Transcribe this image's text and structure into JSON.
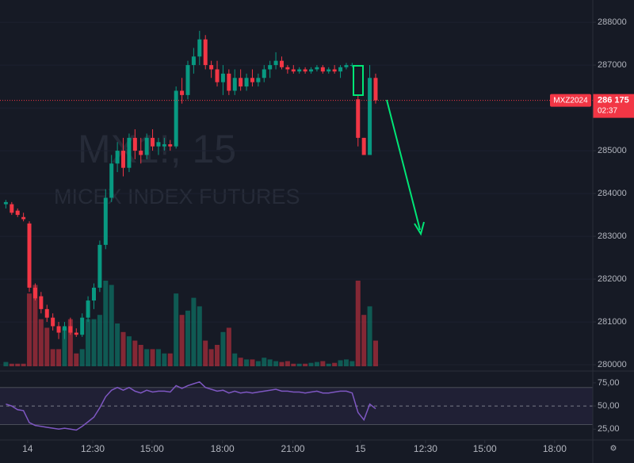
{
  "chart_data": [
    {
      "type": "candlestick",
      "watermark_title": "MX1!, 15",
      "watermark_subtitle": "MICEX INDEX FUTURES",
      "symbol": "MXZ2024",
      "last_price": {
        "value": 286175,
        "label": "286 175"
      },
      "countdown": "02:37",
      "up_color": "#089981",
      "down_color": "#f23645",
      "open": [
        283750,
        283750,
        283600,
        283450,
        283300,
        281800,
        281600,
        281300,
        281100,
        280900,
        280800,
        280900,
        280750,
        280700,
        281100,
        281500,
        281800,
        282800,
        283900,
        284700,
        285000,
        284600,
        285300,
        285000,
        284900,
        285300,
        285100,
        285100,
        285150,
        285100,
        286400,
        286300,
        287000,
        287200,
        287600,
        287000,
        286900,
        286600,
        286800,
        286400,
        286700,
        286500,
        286700,
        286600,
        286700,
        286900,
        287000,
        287100,
        286950,
        286900,
        286850,
        286900,
        286850,
        286900,
        286950,
        286850,
        286900,
        286850,
        286950,
        287000,
        286200,
        285300,
        284900,
        286700
      ],
      "high": [
        283850,
        283800,
        283650,
        283550,
        283350,
        281900,
        281700,
        281400,
        281200,
        281000,
        281000,
        281100,
        280850,
        281200,
        281600,
        281900,
        282900,
        284100,
        284900,
        285200,
        285300,
        285400,
        285500,
        285300,
        285400,
        285500,
        285300,
        285300,
        285250,
        286500,
        286700,
        287100,
        287400,
        287800,
        287700,
        287100,
        287100,
        287000,
        286900,
        286900,
        286900,
        286800,
        286900,
        286800,
        287000,
        287100,
        287300,
        287200,
        287000,
        287000,
        286950,
        286950,
        286950,
        287000,
        287000,
        286950,
        287000,
        287000,
        287050,
        287050,
        286300,
        285300,
        287000,
        286800
      ],
      "low": [
        283650,
        283500,
        283450,
        283350,
        281700,
        281500,
        281200,
        281000,
        280800,
        280600,
        280600,
        280700,
        280650,
        280650,
        281000,
        281300,
        281700,
        282700,
        283800,
        284500,
        284400,
        284500,
        284800,
        284700,
        284800,
        285000,
        284900,
        285000,
        285000,
        285050,
        286100,
        286200,
        286800,
        287000,
        286900,
        286700,
        286500,
        286300,
        286300,
        286300,
        286400,
        286400,
        286500,
        286500,
        286600,
        286700,
        286900,
        286900,
        286800,
        286800,
        286800,
        286800,
        286800,
        286850,
        286800,
        286800,
        286800,
        286700,
        286900,
        286950,
        285100,
        284900,
        284900,
        286100
      ],
      "close": [
        283800,
        283550,
        283500,
        283400,
        281800,
        281550,
        281300,
        281100,
        280900,
        280750,
        280900,
        280750,
        280700,
        281100,
        281500,
        281800,
        282800,
        283900,
        284700,
        285000,
        284600,
        285300,
        285000,
        284900,
        285300,
        285100,
        285200,
        285150,
        285100,
        286400,
        286300,
        287000,
        287200,
        287600,
        287000,
        286900,
        286600,
        286800,
        286400,
        286700,
        286500,
        286700,
        286600,
        286700,
        286900,
        287000,
        287100,
        286950,
        286900,
        286850,
        286900,
        286850,
        286900,
        286950,
        286850,
        286900,
        286850,
        286950,
        287000,
        287000,
        285300,
        284900,
        286700,
        286175
      ],
      "volume": [
        5,
        3,
        3,
        3,
        85,
        95,
        55,
        45,
        20,
        20,
        45,
        55,
        15,
        20,
        55,
        55,
        60,
        100,
        95,
        50,
        40,
        35,
        30,
        25,
        20,
        20,
        20,
        15,
        15,
        85,
        60,
        65,
        80,
        70,
        30,
        20,
        25,
        40,
        45,
        15,
        10,
        8,
        8,
        6,
        10,
        8,
        6,
        5,
        6,
        3,
        3,
        3,
        4,
        5,
        6,
        3,
        4,
        7,
        8,
        6,
        100,
        60,
        70,
        30
      ],
      "xlim": [
        -1,
        100
      ],
      "xticks": [
        {
          "value": 3.7,
          "label": "14"
        },
        {
          "value": 14.8,
          "label": "12:30"
        },
        {
          "value": 24.9,
          "label": "15:00"
        },
        {
          "value": 36.9,
          "label": "18:00"
        },
        {
          "value": 48.9,
          "label": "21:00"
        },
        {
          "value": 60.4,
          "label": "15"
        },
        {
          "value": 71.5,
          "label": "12:30"
        },
        {
          "value": 81.6,
          "label": "15:00"
        },
        {
          "value": 93.5,
          "label": "18:00"
        }
      ],
      "ylim": [
        279890,
        288520
      ],
      "yticks": [
        280000,
        281000,
        282000,
        283000,
        284000,
        285000,
        286000,
        287000,
        288000
      ]
    },
    {
      "type": "line",
      "color": "#7e57c2",
      "values": [
        52,
        50,
        46,
        45,
        32,
        29,
        28,
        27,
        26,
        25,
        26,
        25,
        24,
        28,
        33,
        38,
        48,
        60,
        67,
        70,
        67,
        70,
        66,
        64,
        67,
        65,
        66,
        66,
        65,
        72,
        69,
        72,
        74,
        76,
        70,
        68,
        66,
        67,
        64,
        66,
        64,
        65,
        64,
        65,
        66,
        67,
        68,
        66,
        66,
        65,
        65,
        64,
        65,
        66,
        64,
        64,
        65,
        66,
        66,
        64,
        43,
        35,
        52,
        47
      ],
      "ylim": [
        15,
        86
      ],
      "yticks": [
        {
          "value": 25,
          "label": "25,00"
        },
        {
          "value": 50,
          "label": "50,00"
        },
        {
          "value": 75,
          "label": "75,00"
        }
      ],
      "band": [
        30,
        70
      ],
      "midline": 50
    }
  ]
}
